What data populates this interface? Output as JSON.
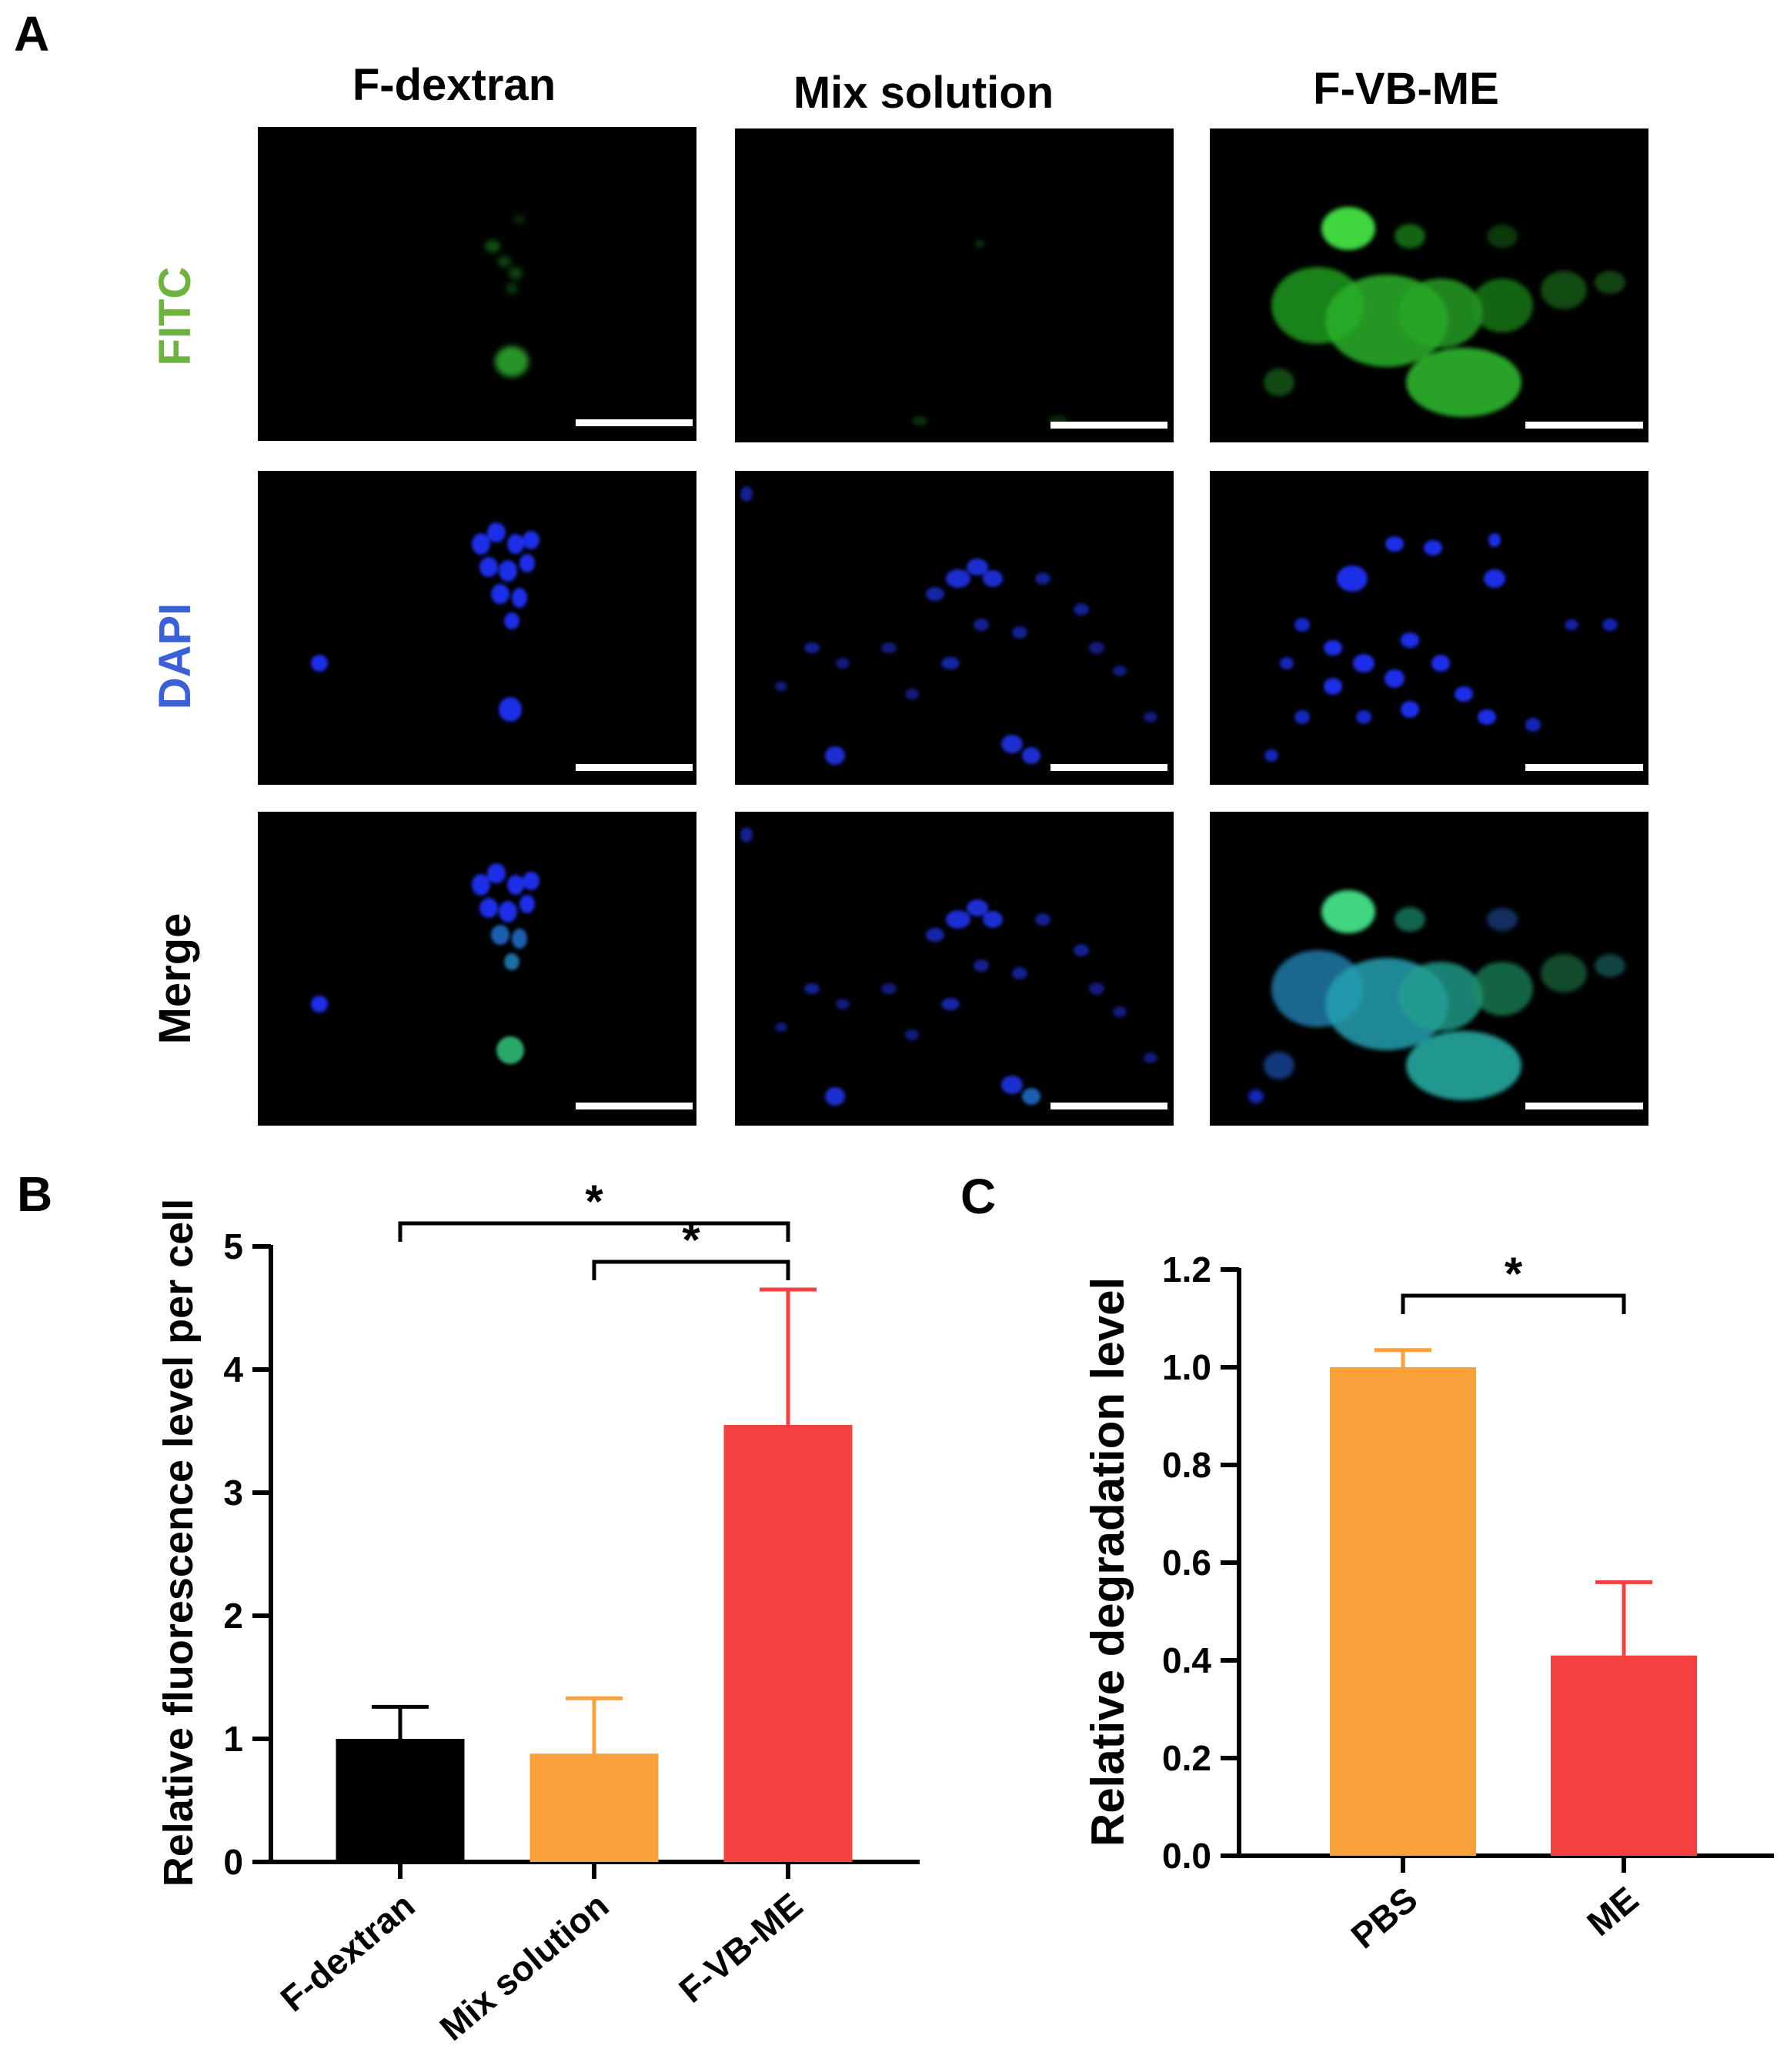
{
  "panels": {
    "a_label": "A",
    "b_label": "B",
    "c_label": "C"
  },
  "micrograph_grid": {
    "columns": [
      "F-dextran",
      "Mix solution",
      "F-VB-ME"
    ],
    "rows": [
      {
        "label": "FITC",
        "color": "#6db33f"
      },
      {
        "label": "DAPI",
        "color": "#3a5fd6"
      },
      {
        "label": "Merge",
        "color": "#000000"
      }
    ]
  },
  "chart_data": [
    {
      "type": "bar",
      "panel": "B",
      "categories": [
        "F-dextran",
        "Mix solution",
        "F-VB-ME"
      ],
      "values": [
        1.0,
        0.88,
        3.55
      ],
      "error": [
        0.26,
        0.45,
        1.1
      ],
      "colors": [
        "#000000",
        "#f9a13b",
        "#f54040"
      ],
      "ylabel": "Relative fluorescence level per cell",
      "xlabel": "",
      "ylim": [
        0,
        5
      ],
      "yticks": [
        "0",
        "1",
        "2",
        "3",
        "4",
        "5"
      ],
      "significance": [
        {
          "from": 0,
          "to": 2,
          "label": "*"
        },
        {
          "from": 1,
          "to": 2,
          "label": "*"
        }
      ]
    },
    {
      "type": "bar",
      "panel": "C",
      "categories": [
        "PBS",
        "ME"
      ],
      "values": [
        1.0,
        0.41
      ],
      "error": [
        0.035,
        0.15
      ],
      "colors": [
        "#f9a13b",
        "#f54040"
      ],
      "ylabel": "Relative degradation level",
      "xlabel": "",
      "ylim": [
        0,
        1.2
      ],
      "yticks": [
        "0.0",
        "0.2",
        "0.4",
        "0.6",
        "0.8",
        "1.0",
        "1.2"
      ],
      "significance": [
        {
          "from": 0,
          "to": 1,
          "label": "*"
        }
      ]
    }
  ]
}
